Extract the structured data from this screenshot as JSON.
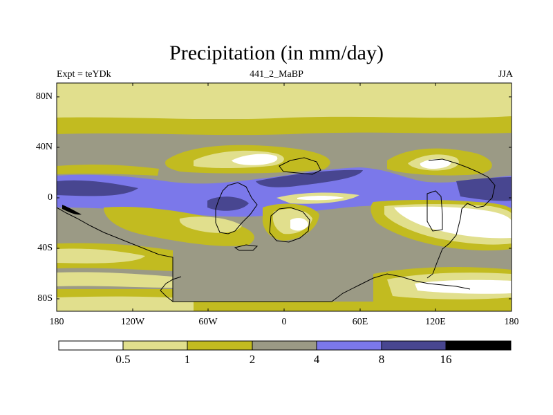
{
  "title": "Precipitation (in mm/day)",
  "subtitle_left": "Expt = teYDk",
  "subtitle_center": "441_2_MaBP",
  "subtitle_right": "JJA",
  "lat_labels": [
    "80N",
    "40N",
    "0",
    "40S",
    "80S"
  ],
  "lon_labels": [
    "180",
    "120W",
    "60W",
    "0",
    "60E",
    "120E",
    "180"
  ],
  "colorbar": {
    "thresholds": [
      "0.5",
      "1",
      "2",
      "4",
      "8",
      "16"
    ],
    "colors": [
      "#ffffff",
      "#e1df8d",
      "#c2bb20",
      "#9b9a85",
      "#7b78ea",
      "#484690",
      "#000000"
    ]
  },
  "colors": {
    "white": "#ffffff",
    "light_yellow": "#e1df8d",
    "olive": "#c2bb20",
    "gray": "#9b9a85",
    "blue": "#7b78ea",
    "dark_blue": "#484690",
    "coastline": "#000000"
  }
}
